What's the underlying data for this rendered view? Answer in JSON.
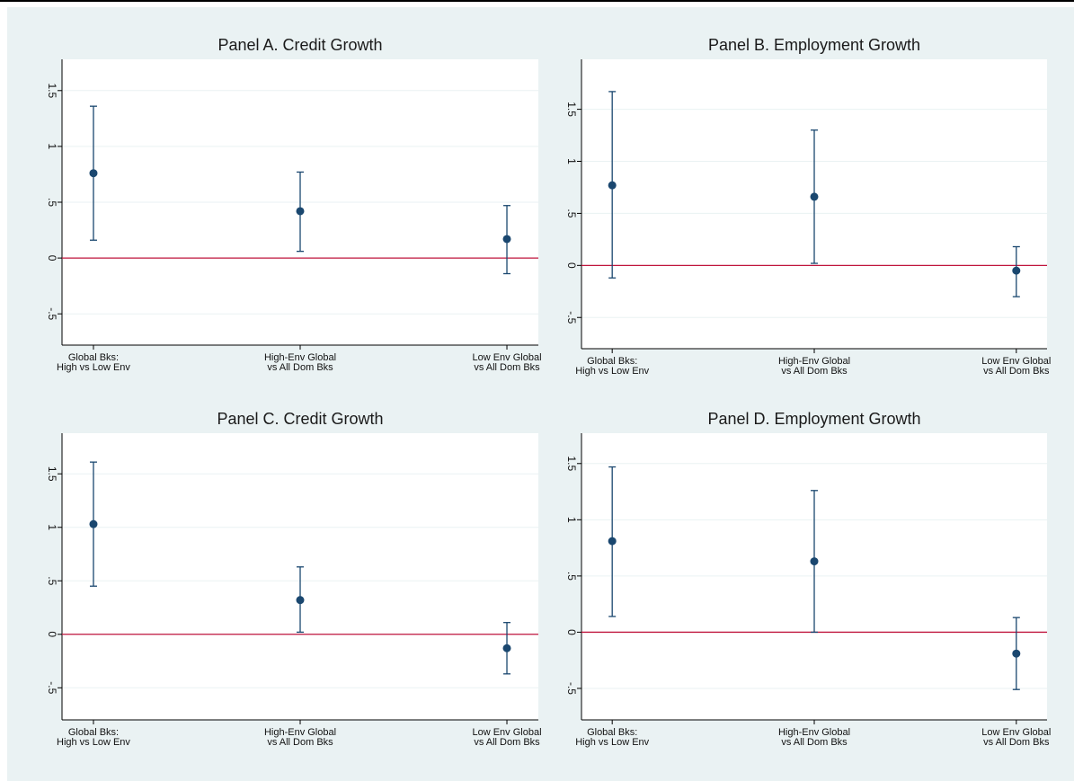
{
  "colors": {
    "background": "#eaf2f3",
    "plot_area": "#ffffff",
    "marker": "#1a476f",
    "reference_line": "#c0143c",
    "grid": "#eaf2f3"
  },
  "chart_data": [
    {
      "type": "scatter",
      "title": "Panel A. Credit Growth",
      "categories": [
        [
          "Global Bks:",
          "High vs Low Env"
        ],
        [
          "High-Env Global",
          "vs All Dom Bks"
        ],
        [
          "Low Env Global",
          "vs All Dom Bks"
        ]
      ],
      "estimates": [
        0.76,
        0.42,
        0.17
      ],
      "ci_low": [
        0.16,
        0.06,
        -0.14
      ],
      "ci_high": [
        1.36,
        0.77,
        0.47
      ],
      "yticks": [
        -0.5,
        0,
        0.5,
        1,
        1.5
      ],
      "ytick_labels": [
        "-.5",
        "0",
        ".5",
        "1",
        "1.5"
      ],
      "ylim": [
        -0.78,
        1.78
      ],
      "reference_line": 0,
      "grid": true,
      "xlabel": "",
      "ylabel": ""
    },
    {
      "type": "scatter",
      "title": "Panel B. Employment Growth",
      "categories": [
        [
          "Global Bks:",
          "High vs Low Env"
        ],
        [
          "High-Env Global",
          "vs All Dom Bks"
        ],
        [
          "Low Env Global",
          "vs All Dom Bks"
        ]
      ],
      "estimates": [
        0.77,
        0.66,
        -0.05
      ],
      "ci_low": [
        -0.12,
        0.02,
        -0.3
      ],
      "ci_high": [
        1.67,
        1.3,
        0.18
      ],
      "yticks": [
        -0.5,
        0,
        0.5,
        1,
        1.5
      ],
      "ytick_labels": [
        "-.5",
        "0",
        ".5",
        "1",
        "1.5"
      ],
      "ylim": [
        -0.8,
        1.98
      ],
      "reference_line": 0,
      "grid": true,
      "xlabel": "",
      "ylabel": ""
    },
    {
      "type": "scatter",
      "title": "Panel C. Credit Growth",
      "categories": [
        [
          "Global Bks:",
          "High vs Low Env"
        ],
        [
          "High-Env Global",
          "vs All Dom Bks"
        ],
        [
          "Low Env Global",
          "vs All Dom Bks"
        ]
      ],
      "estimates": [
        1.03,
        0.32,
        -0.13
      ],
      "ci_low": [
        0.45,
        0.02,
        -0.37
      ],
      "ci_high": [
        1.61,
        0.63,
        0.11
      ],
      "yticks": [
        -0.5,
        0,
        0.5,
        1,
        1.5
      ],
      "ytick_labels": [
        "-.5",
        "0",
        ".5",
        "1",
        "1.5"
      ],
      "ylim": [
        -0.8,
        1.88
      ],
      "reference_line": 0,
      "grid": true,
      "xlabel": "",
      "ylabel": ""
    },
    {
      "type": "scatter",
      "title": "Panel D. Employment Growth",
      "categories": [
        [
          "Global Bks:",
          "High vs Low Env"
        ],
        [
          "High-Env Global",
          "vs All Dom Bks"
        ],
        [
          "Low Env Global",
          "vs All Dom Bks"
        ]
      ],
      "estimates": [
        0.81,
        0.63,
        -0.19
      ],
      "ci_low": [
        0.14,
        0.0,
        -0.51
      ],
      "ci_high": [
        1.47,
        1.26,
        0.13
      ],
      "yticks": [
        -0.5,
        0,
        0.5,
        1,
        1.5
      ],
      "ytick_labels": [
        "-.5",
        "0",
        ".5",
        "1",
        "1.5"
      ],
      "ylim": [
        -0.78,
        1.77
      ],
      "reference_line": 0,
      "grid": true,
      "xlabel": "",
      "ylabel": ""
    }
  ]
}
